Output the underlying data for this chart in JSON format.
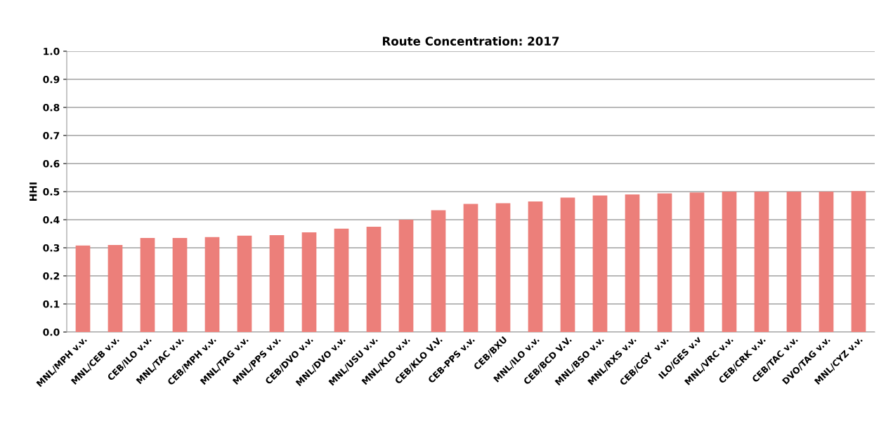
{
  "chart_data": {
    "type": "bar",
    "title": "Route Concentration: 2017",
    "ylabel": "HHI",
    "categories": [
      "MNL/MPH v.v.",
      "MNL/CEB v.v.",
      "CEB/ILO v.v.",
      "MNL/TAC v.v.",
      "CEB/MPH v.v.",
      "MNL/TAG v.v.",
      "MNL/PPS v.v.",
      "CEB/DVO v.v.",
      "MNL/DVO v.v.",
      "MNL/USU v.v.",
      "MNL/KLO v.v.",
      "CEB/KLO V.V.",
      "CEB-PPS v.v.",
      "CEB/BXU",
      "MNL/ILO v.v.",
      "CEB/BCD V.V.",
      "MNL/BSO v.v.",
      "MNL/RXS v.v.",
      "CEB/CGY  v.v.",
      "ILO/GES v.v",
      "MNL/VRC v.v.",
      "CEB/CRK v.v.",
      "CEB/TAC v.v.",
      "DVO/TAG v.v.",
      "MNL/CYZ v.v."
    ],
    "values": [
      0.308,
      0.31,
      0.335,
      0.335,
      0.338,
      0.343,
      0.345,
      0.355,
      0.368,
      0.375,
      0.4,
      0.434,
      0.456,
      0.459,
      0.465,
      0.479,
      0.486,
      0.49,
      0.494,
      0.497,
      0.5,
      0.5,
      0.5,
      0.5,
      0.502
    ],
    "color": "#ec7f7a",
    "ylim": [
      0,
      1
    ],
    "yticks": [
      {
        "value": 0,
        "label": "0.0"
      },
      {
        "value": 0.1,
        "label": "0.1"
      },
      {
        "value": 0.2,
        "label": "0.2"
      },
      {
        "value": 0.3,
        "label": "0.3"
      },
      {
        "value": 0.4,
        "label": "0.4"
      },
      {
        "value": 0.5,
        "label": "0.5"
      },
      {
        "value": 0.6,
        "label": "0.6"
      },
      {
        "value": 0.7,
        "label": "0.7"
      },
      {
        "value": 0.8,
        "label": "0.8"
      },
      {
        "value": 0.9,
        "label": "0.9"
      },
      {
        "value": 1,
        "label": "1.0"
      }
    ],
    "grid": "y"
  }
}
